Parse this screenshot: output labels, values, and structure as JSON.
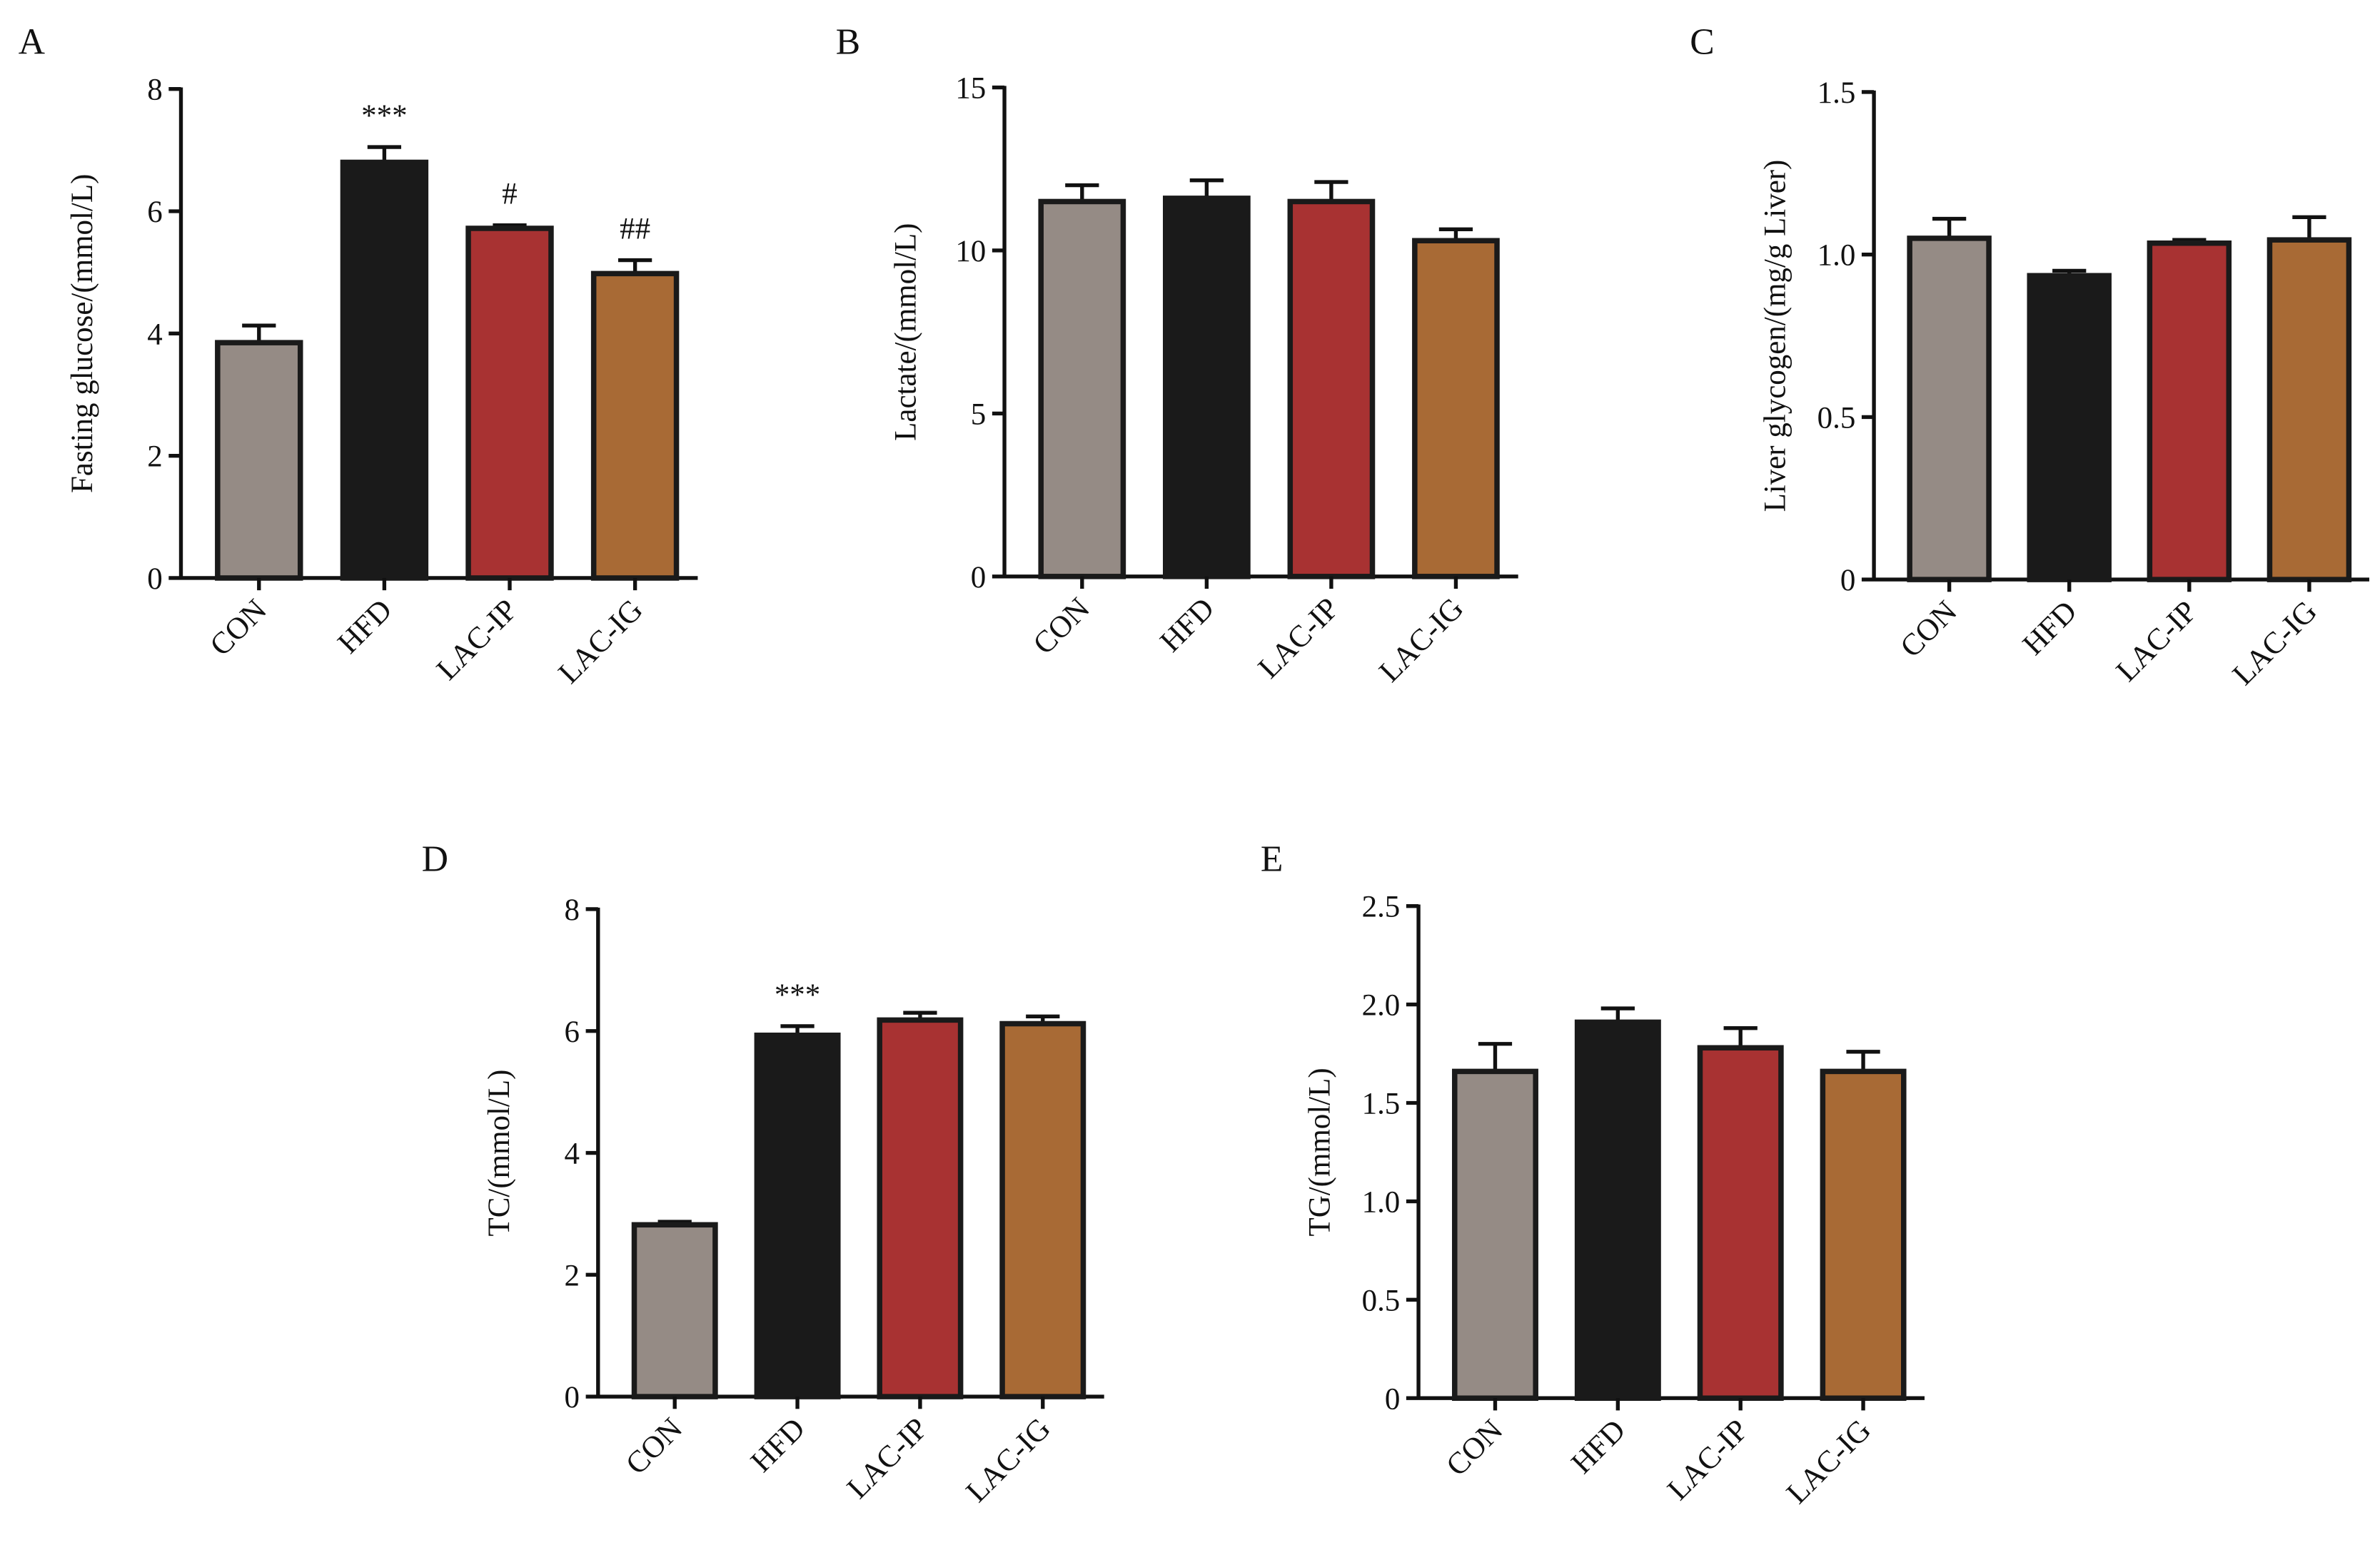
{
  "chart_data": [
    {
      "type": "bar",
      "panel": "A",
      "ylabel": "Fasting glucose/(mmol/L)",
      "categories": [
        "CON",
        "HFD",
        "LAC-IP",
        "LAC-IG"
      ],
      "values": [
        3.85,
        6.8,
        5.72,
        4.98
      ],
      "errors": [
        0.28,
        0.25,
        0.05,
        0.22
      ],
      "annotations": [
        null,
        "***",
        "#",
        "##"
      ],
      "colors": [
        "#958b85",
        "#1a1a1a",
        "#a83232",
        "#a86a35"
      ],
      "ylim": [
        0,
        8
      ],
      "yticks": [
        0,
        2,
        4,
        6,
        8
      ]
    },
    {
      "type": "bar",
      "panel": "B",
      "ylabel": "Lactate/(mmol/L)",
      "categories": [
        "CON",
        "HFD",
        "LAC-IP",
        "LAC-IG"
      ],
      "values": [
        11.5,
        11.6,
        11.5,
        10.3
      ],
      "errors": [
        0.5,
        0.55,
        0.6,
        0.35
      ],
      "colors": [
        "#958b85",
        "#1a1a1a",
        "#a83232",
        "#a86a35"
      ],
      "ylim": [
        0,
        15
      ],
      "yticks": [
        0,
        5,
        10,
        15
      ]
    },
    {
      "type": "bar",
      "panel": "C",
      "ylabel": "Liver glycogen/(mg/g Liver)",
      "categories": [
        "CON",
        "HFD",
        "LAC-IP",
        "LAC-IG"
      ],
      "values": [
        1.05,
        0.935,
        1.035,
        1.045
      ],
      "errors": [
        0.06,
        0.015,
        0.01,
        0.07
      ],
      "colors": [
        "#958b85",
        "#1a1a1a",
        "#a83232",
        "#a86a35"
      ],
      "ylim": [
        0,
        1.5
      ],
      "yticks": [
        0,
        0.5,
        {
          "value": 1,
          "label": "1.0"
        },
        1.5
      ]
    },
    {
      "type": "bar",
      "panel": "D",
      "ylabel": "TC/(mmol/L)",
      "categories": [
        "CON",
        "HFD",
        "LAC-IP",
        "LAC-IG"
      ],
      "values": [
        2.82,
        5.93,
        6.18,
        6.12
      ],
      "errors": [
        0.05,
        0.15,
        0.12,
        0.12
      ],
      "annotations": [
        null,
        "***",
        null,
        null
      ],
      "colors": [
        "#958b85",
        "#1a1a1a",
        "#a83232",
        "#a86a35"
      ],
      "ylim": [
        0,
        8
      ],
      "yticks": [
        0,
        2,
        4,
        6,
        8
      ]
    },
    {
      "type": "bar",
      "panel": "E",
      "ylabel": "TG/(mmol/L)",
      "categories": [
        "CON",
        "HFD",
        "LAC-IP",
        "LAC-IG"
      ],
      "values": [
        1.66,
        1.91,
        1.78,
        1.66
      ],
      "errors": [
        0.14,
        0.07,
        0.1,
        0.1
      ],
      "colors": [
        "#958b85",
        "#1a1a1a",
        "#a83232",
        "#a86a35"
      ],
      "ylim": [
        0,
        2.5
      ],
      "yticks": [
        0,
        0.5,
        {
          "value": 1,
          "label": "1.0"
        },
        1.5,
        {
          "value": 2,
          "label": "2.0"
        },
        2.5
      ]
    }
  ]
}
